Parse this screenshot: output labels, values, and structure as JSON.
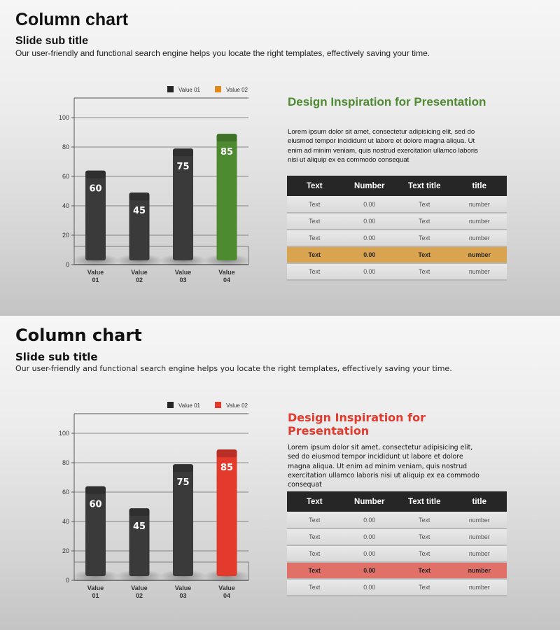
{
  "slides": [
    {
      "title": "Column chart",
      "subtitle": "Slide sub title",
      "description": "Our user-friendly and functional search engine helps you locate the right templates, effectively saving your time.",
      "accent": "#4e8a30",
      "row_highlight": "#d9a34f",
      "side_heading": "Design Inspiration for Presentation",
      "side_body": "Lorem ipsum dolor sit amet, consectetur adipisicing elit, sed do eiusmod tempor incididunt ut labore et dolore magna aliqua. Ut enim ad minim veniam, quis nostrud exercitation ullamco laboris nisi ut aliquip ex ea commodo consequat",
      "table": {
        "headers": [
          "Text",
          "Number",
          "Text title",
          "title"
        ],
        "rows": [
          [
            "Text",
            "0.00",
            "Text",
            "number"
          ],
          [
            "Text",
            "0.00",
            "Text",
            "number"
          ],
          [
            "Text",
            "0.00",
            "Text",
            "number"
          ],
          [
            "Text",
            "0.00",
            "Text",
            "number"
          ],
          [
            "Text",
            "0.00",
            "Text",
            "number"
          ]
        ],
        "highlight_row": 3
      },
      "chart_data": {
        "type": "bar",
        "categories": [
          "Value 01",
          "Value 02",
          "Value 03",
          "Value 04"
        ],
        "values": [
          60,
          45,
          75,
          85
        ],
        "highlight_index": 3,
        "legend": [
          "Value 01",
          "Value 02"
        ],
        "legend_colors": [
          "#262626",
          "#e08a1c"
        ],
        "legend_position": "top",
        "y_ticks": [
          0,
          20,
          40,
          60,
          80,
          100
        ],
        "ylim": [
          0,
          110
        ],
        "grid": true,
        "bar_color": "#3a3a3a",
        "highlight_color": "#4e8a30"
      }
    },
    {
      "title": "Column chart",
      "subtitle": "Slide sub title",
      "description": "Our user-friendly and functional search engine helps you locate the right templates, effectively saving your time.",
      "accent": "#e33a2e",
      "row_highlight": "#e07068",
      "side_heading": "Design Inspiration for Presentation",
      "side_body": "Lorem ipsum dolor sit amet, consectetur adipisicing elit, sed do eiusmod tempor incididunt ut labore et dolore magna aliqua. Ut enim ad minim veniam, quis nostrud exercitation ullamco laboris nisi ut aliquip ex ea commodo consequat",
      "table": {
        "headers": [
          "Text",
          "Number",
          "Text title",
          "title"
        ],
        "rows": [
          [
            "Text",
            "0.00",
            "Text",
            "number"
          ],
          [
            "Text",
            "0.00",
            "Text",
            "number"
          ],
          [
            "Text",
            "0.00",
            "Text",
            "number"
          ],
          [
            "Text",
            "0.00",
            "Text",
            "number"
          ],
          [
            "Text",
            "0.00",
            "Text",
            "number"
          ]
        ],
        "highlight_row": 3
      },
      "chart_data": {
        "type": "bar",
        "categories": [
          "Value 01",
          "Value 02",
          "Value 03",
          "Value 04"
        ],
        "values": [
          60,
          45,
          75,
          85
        ],
        "highlight_index": 3,
        "legend": [
          "Value 01",
          "Value 02"
        ],
        "legend_colors": [
          "#262626",
          "#e33a2e"
        ],
        "legend_position": "top",
        "y_ticks": [
          0,
          20,
          40,
          60,
          80,
          100
        ],
        "ylim": [
          0,
          110
        ],
        "grid": true,
        "bar_color": "#3a3a3a",
        "highlight_color": "#e33a2e"
      }
    }
  ]
}
